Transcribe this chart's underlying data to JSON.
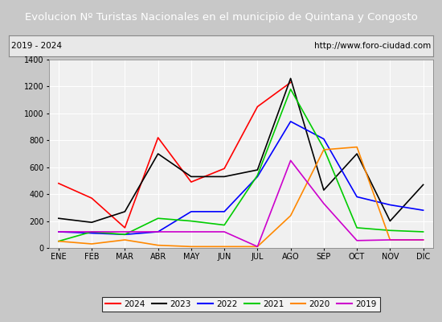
{
  "title": "Evolucion Nº Turistas Nacionales en el municipio de Quintana y Congosto",
  "subtitle_left": "2019 - 2024",
  "subtitle_right": "http://www.foro-ciudad.com",
  "months": [
    "ENE",
    "FEB",
    "MAR",
    "ABR",
    "MAY",
    "JUN",
    "JUL",
    "AGO",
    "SEP",
    "OCT",
    "NOV",
    "DIC"
  ],
  "series": {
    "2024": [
      480,
      370,
      150,
      820,
      490,
      590,
      1050,
      1230,
      null,
      null,
      null,
      null
    ],
    "2023": [
      220,
      190,
      270,
      700,
      530,
      530,
      580,
      1260,
      430,
      700,
      200,
      470
    ],
    "2022": [
      120,
      110,
      100,
      120,
      270,
      270,
      530,
      940,
      810,
      380,
      320,
      280
    ],
    "2021": [
      50,
      120,
      100,
      220,
      200,
      170,
      540,
      1180,
      740,
      150,
      130,
      120
    ],
    "2020": [
      50,
      30,
      60,
      20,
      10,
      10,
      10,
      240,
      730,
      750,
      60,
      60
    ],
    "2019": [
      120,
      120,
      120,
      120,
      120,
      120,
      10,
      650,
      330,
      55,
      60,
      60
    ]
  },
  "colors": {
    "2024": "#ff0000",
    "2023": "#000000",
    "2022": "#0000ff",
    "2021": "#00cc00",
    "2020": "#ff8800",
    "2019": "#cc00cc"
  },
  "ylim": [
    0,
    1400
  ],
  "yticks": [
    0,
    200,
    400,
    600,
    800,
    1000,
    1200,
    1400
  ],
  "title_bg": "#4f81bd",
  "title_color": "#ffffff",
  "plot_bg": "#f0f0f0",
  "grid_color": "#ffffff",
  "border_color": "#888888",
  "fig_bg": "#c8c8c8"
}
